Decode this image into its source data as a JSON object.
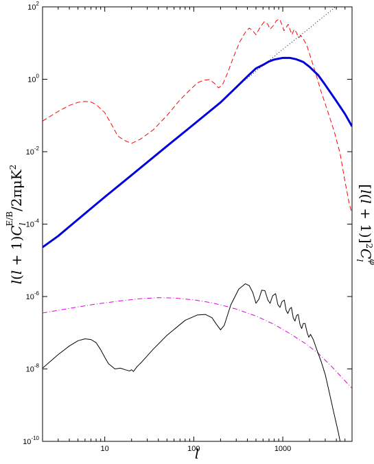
{
  "chart_data": {
    "type": "line",
    "title": "",
    "xlabel": "l",
    "ylabel": "l(l+1)C_l^{E/B}/2πμK²",
    "ylabel_right": "[l(l+1)]²C_l^φ",
    "xscale": "log",
    "yscale": "log",
    "xlim": [
      2,
      6000
    ],
    "ylim": [
      1e-10,
      100
    ],
    "grid": false,
    "legend": "none",
    "x_ticks": [
      {
        "value": 10,
        "label": "10"
      },
      {
        "value": 100,
        "label": "100"
      },
      {
        "value": 1000,
        "label": "1000"
      }
    ],
    "y_ticks": [
      {
        "value": 100,
        "base": "10",
        "exp": "2"
      },
      {
        "value": 1,
        "base": "10",
        "exp": "0"
      },
      {
        "value": 0.01,
        "base": "10",
        "exp": "-2"
      },
      {
        "value": 0.0001,
        "base": "10",
        "exp": "-4"
      },
      {
        "value": 1e-06,
        "base": "10",
        "exp": "-6"
      },
      {
        "value": 1e-08,
        "base": "10",
        "exp": "-8"
      },
      {
        "value": 1e-10,
        "base": "10",
        "exp": "-10"
      }
    ],
    "series": [
      {
        "color": "#ff0000",
        "style": "dashed",
        "width": 1,
        "points": [
          [
            2,
            0.07
          ],
          [
            3,
            0.13
          ],
          [
            4,
            0.19
          ],
          [
            5,
            0.23
          ],
          [
            6,
            0.245
          ],
          [
            7,
            0.235
          ],
          [
            8,
            0.2
          ],
          [
            10,
            0.12
          ],
          [
            12,
            0.055
          ],
          [
            14,
            0.027
          ],
          [
            17,
            0.02
          ],
          [
            20,
            0.017
          ],
          [
            25,
            0.022
          ],
          [
            35,
            0.04
          ],
          [
            50,
            0.1
          ],
          [
            70,
            0.27
          ],
          [
            90,
            0.5
          ],
          [
            110,
            0.8
          ],
          [
            130,
            0.95
          ],
          [
            150,
            0.98
          ],
          [
            170,
            0.78
          ],
          [
            190,
            0.58
          ],
          [
            210,
            0.7
          ],
          [
            240,
            1.5
          ],
          [
            280,
            4.2
          ],
          [
            330,
            11
          ],
          [
            380,
            20
          ],
          [
            420,
            26
          ],
          [
            460,
            22
          ],
          [
            500,
            17
          ],
          [
            560,
            28
          ],
          [
            620,
            39
          ],
          [
            680,
            33
          ],
          [
            720,
            24
          ],
          [
            780,
            30
          ],
          [
            850,
            42
          ],
          [
            920,
            46
          ],
          [
            980,
            32
          ],
          [
            1030,
            22
          ],
          [
            1090,
            27
          ],
          [
            1150,
            33
          ],
          [
            1210,
            23
          ],
          [
            1270,
            17
          ],
          [
            1340,
            24
          ],
          [
            1420,
            20
          ],
          [
            1500,
            14
          ],
          [
            1600,
            16
          ],
          [
            1700,
            13
          ],
          [
            1850,
            9
          ],
          [
            2000,
            5
          ],
          [
            2300,
            1.7
          ],
          [
            2700,
            0.45
          ],
          [
            3200,
            0.13
          ],
          [
            3800,
            0.035
          ],
          [
            4400,
            0.009
          ],
          [
            5000,
            0.0015
          ],
          [
            5600,
            0.00035
          ],
          [
            6000,
            0.0002
          ]
        ]
      },
      {
        "color": "#0000dd",
        "style": "solid",
        "width": 3,
        "points": [
          [
            2,
            2.3e-05
          ],
          [
            3,
            4.7e-05
          ],
          [
            5,
            0.000135
          ],
          [
            10,
            0.00056
          ],
          [
            20,
            0.00225
          ],
          [
            50,
            0.0143
          ],
          [
            100,
            0.057
          ],
          [
            200,
            0.23
          ],
          [
            300,
            0.6
          ],
          [
            400,
            1.2
          ],
          [
            500,
            2.0
          ],
          [
            600,
            2.5
          ],
          [
            700,
            3.1
          ],
          [
            800,
            3.5
          ],
          [
            900,
            3.7
          ],
          [
            1000,
            3.9
          ],
          [
            1200,
            3.9
          ],
          [
            1400,
            3.6
          ],
          [
            1700,
            3.0
          ],
          [
            2000,
            2.2
          ],
          [
            2500,
            1.3
          ],
          [
            3000,
            0.7
          ],
          [
            4000,
            0.25
          ],
          [
            5000,
            0.11
          ],
          [
            6000,
            0.05
          ]
        ]
      },
      {
        "color": "#000000",
        "style": "dotted",
        "width": 1,
        "points": [
          [
            300,
            0.6
          ],
          [
            600,
            2.4
          ],
          [
            1000,
            6.7
          ],
          [
            2000,
            26
          ],
          [
            4000,
            105
          ],
          [
            6000,
            230
          ]
        ]
      },
      {
        "color": "#dd00dd",
        "style": "dashdot",
        "width": 1,
        "points": [
          [
            2,
            3.5e-07
          ],
          [
            4,
            4.7e-07
          ],
          [
            8,
            6.2e-07
          ],
          [
            15,
            7.6e-07
          ],
          [
            25,
            8.7e-07
          ],
          [
            40,
            9.3e-07
          ],
          [
            60,
            9.1e-07
          ],
          [
            100,
            8.1e-07
          ],
          [
            150,
            6.9e-07
          ],
          [
            200,
            5.9e-07
          ],
          [
            300,
            4.5e-07
          ],
          [
            500,
            2.9e-07
          ],
          [
            800,
            1.7e-07
          ],
          [
            1200,
            9.5e-08
          ],
          [
            1800,
            5e-08
          ],
          [
            2500,
            2.7e-08
          ],
          [
            3500,
            1.2e-08
          ],
          [
            4500,
            6.2e-09
          ],
          [
            6000,
            2.9e-09
          ]
        ]
      },
      {
        "color": "#000000",
        "style": "solid",
        "width": 1,
        "points": [
          [
            2,
            1.05e-08
          ],
          [
            3,
            2.5e-08
          ],
          [
            4,
            4.3e-08
          ],
          [
            5,
            6e-08
          ],
          [
            6,
            6.8e-08
          ],
          [
            7,
            6.5e-08
          ],
          [
            8,
            5.3e-08
          ],
          [
            9,
            3.4e-08
          ],
          [
            10,
            2.1e-08
          ],
          [
            11,
            1.4e-08
          ],
          [
            13,
            1e-08
          ],
          [
            15,
            1.05e-08
          ],
          [
            17,
            9.5e-09
          ],
          [
            19,
            8.8e-09
          ],
          [
            20,
            9.5e-09
          ],
          [
            21,
            8.5e-09
          ],
          [
            23,
            1.15e-08
          ],
          [
            26,
            1.55e-08
          ],
          [
            35,
            3.5e-08
          ],
          [
            50,
            8.5e-08
          ],
          [
            80,
            2.2e-07
          ],
          [
            110,
            3.1e-07
          ],
          [
            135,
            3.2e-07
          ],
          [
            160,
            2.6e-07
          ],
          [
            180,
            1.7e-07
          ],
          [
            200,
            1.2e-07
          ],
          [
            220,
            1.6e-07
          ],
          [
            260,
            5.8e-07
          ],
          [
            320,
            1.6e-06
          ],
          [
            380,
            2.25e-06
          ],
          [
            420,
            2e-06
          ],
          [
            460,
            1.3e-06
          ],
          [
            500,
            6.5e-07
          ],
          [
            540,
            8.5e-07
          ],
          [
            580,
            1.5e-06
          ],
          [
            630,
            1.45e-06
          ],
          [
            680,
            8e-07
          ],
          [
            720,
            6.5e-07
          ],
          [
            770,
            1.05e-06
          ],
          [
            830,
            1.2e-06
          ],
          [
            880,
            6e-07
          ],
          [
            930,
            5e-07
          ],
          [
            980,
            7.2e-07
          ],
          [
            1040,
            8e-07
          ],
          [
            1090,
            4.2e-07
          ],
          [
            1140,
            3.4e-07
          ],
          [
            1200,
            4.6e-07
          ],
          [
            1250,
            5e-07
          ],
          [
            1310,
            2.6e-07
          ],
          [
            1370,
            2.1e-07
          ],
          [
            1430,
            3e-07
          ],
          [
            1490,
            3.2e-07
          ],
          [
            1560,
            1.7e-07
          ],
          [
            1630,
            1.3e-07
          ],
          [
            1700,
            1.8e-07
          ],
          [
            1780,
            1.8e-07
          ],
          [
            1880,
            1e-07
          ],
          [
            1960,
            7.5e-08
          ],
          [
            2050,
            9e-08
          ],
          [
            2200,
            6.5e-08
          ],
          [
            2400,
            3.5e-08
          ],
          [
            2700,
            1.6e-08
          ],
          [
            3000,
            7e-09
          ],
          [
            3300,
            2.5e-09
          ],
          [
            3700,
            7e-10
          ],
          [
            4200,
            1.8e-10
          ],
          [
            4600,
            6e-11
          ]
        ]
      }
    ]
  }
}
